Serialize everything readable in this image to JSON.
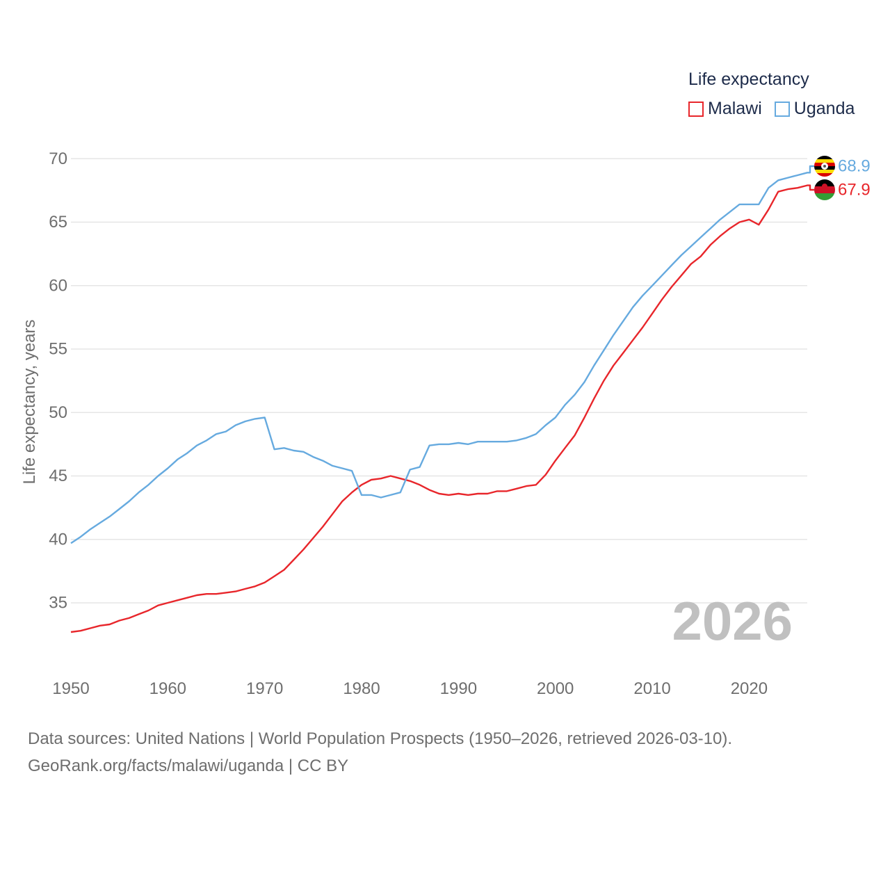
{
  "legend": {
    "title": "Life expectancy",
    "items": [
      {
        "label": "Malawi",
        "color": "#e8262b"
      },
      {
        "label": "Uganda",
        "color": "#66aadf"
      }
    ]
  },
  "footer": {
    "line1": "Data sources: United Nations | World Population Prospects (1950–2026, retrieved 2026-03-10).",
    "line2": "GeoRank.org/facts/malawi/uganda | CC BY"
  },
  "chart_data": {
    "type": "line",
    "title": "Life expectancy",
    "xlabel": "",
    "ylabel": "Life expectancy, years",
    "xlim": [
      1950,
      2026
    ],
    "ylim": [
      30.5,
      72
    ],
    "xticks": [
      1950,
      1960,
      1970,
      1980,
      1990,
      2000,
      2010,
      2020
    ],
    "yticks": [
      35,
      40,
      45,
      50,
      55,
      60,
      65,
      70
    ],
    "grid": true,
    "year_label": "2026",
    "x": [
      1950,
      1951,
      1952,
      1953,
      1954,
      1955,
      1956,
      1957,
      1958,
      1959,
      1960,
      1961,
      1962,
      1963,
      1964,
      1965,
      1966,
      1967,
      1968,
      1969,
      1970,
      1971,
      1972,
      1973,
      1974,
      1975,
      1976,
      1977,
      1978,
      1979,
      1980,
      1981,
      1982,
      1983,
      1984,
      1985,
      1986,
      1987,
      1988,
      1989,
      1990,
      1991,
      1992,
      1993,
      1994,
      1995,
      1996,
      1997,
      1998,
      1999,
      2000,
      2001,
      2002,
      2003,
      2004,
      2005,
      2006,
      2007,
      2008,
      2009,
      2010,
      2011,
      2012,
      2013,
      2014,
      2015,
      2016,
      2017,
      2018,
      2019,
      2020,
      2021,
      2022,
      2023,
      2024,
      2025,
      2026
    ],
    "series": [
      {
        "name": "Malawi",
        "color": "#e8262b",
        "end_label": "67.9",
        "values": [
          32.7,
          32.8,
          33.0,
          33.2,
          33.3,
          33.6,
          33.8,
          34.1,
          34.4,
          34.8,
          35.0,
          35.2,
          35.4,
          35.6,
          35.7,
          35.7,
          35.8,
          35.9,
          36.1,
          36.3,
          36.6,
          37.1,
          37.6,
          38.4,
          39.2,
          40.1,
          41.0,
          42.0,
          43.0,
          43.7,
          44.3,
          44.7,
          44.8,
          45.0,
          44.8,
          44.6,
          44.3,
          43.9,
          43.6,
          43.5,
          43.6,
          43.5,
          43.6,
          43.6,
          43.8,
          43.8,
          44.0,
          44.2,
          44.3,
          45.1,
          46.2,
          47.2,
          48.2,
          49.6,
          51.1,
          52.5,
          53.7,
          54.7,
          55.7,
          56.7,
          57.8,
          58.9,
          59.9,
          60.8,
          61.7,
          62.3,
          63.2,
          63.9,
          64.5,
          65.0,
          65.2,
          64.8,
          66.0,
          67.4,
          67.6,
          67.7,
          67.9
        ]
      },
      {
        "name": "Uganda",
        "color": "#66aadf",
        "end_label": "68.9",
        "values": [
          39.7,
          40.2,
          40.8,
          41.3,
          41.8,
          42.4,
          43.0,
          43.7,
          44.3,
          45.0,
          45.6,
          46.3,
          46.8,
          47.4,
          47.8,
          48.3,
          48.5,
          49.0,
          49.3,
          49.5,
          49.6,
          47.1,
          47.2,
          47.0,
          46.9,
          46.5,
          46.2,
          45.8,
          45.6,
          45.4,
          43.5,
          43.5,
          43.3,
          43.5,
          43.7,
          45.5,
          45.7,
          47.4,
          47.5,
          47.5,
          47.6,
          47.5,
          47.7,
          47.7,
          47.7,
          47.7,
          47.8,
          48.0,
          48.3,
          49.0,
          49.6,
          50.6,
          51.4,
          52.4,
          53.7,
          54.9,
          56.1,
          57.2,
          58.3,
          59.2,
          60.0,
          60.8,
          61.6,
          62.4,
          63.1,
          63.8,
          64.5,
          65.2,
          65.8,
          66.4,
          66.4,
          66.4,
          67.7,
          68.3,
          68.5,
          68.7,
          68.9
        ]
      }
    ]
  }
}
